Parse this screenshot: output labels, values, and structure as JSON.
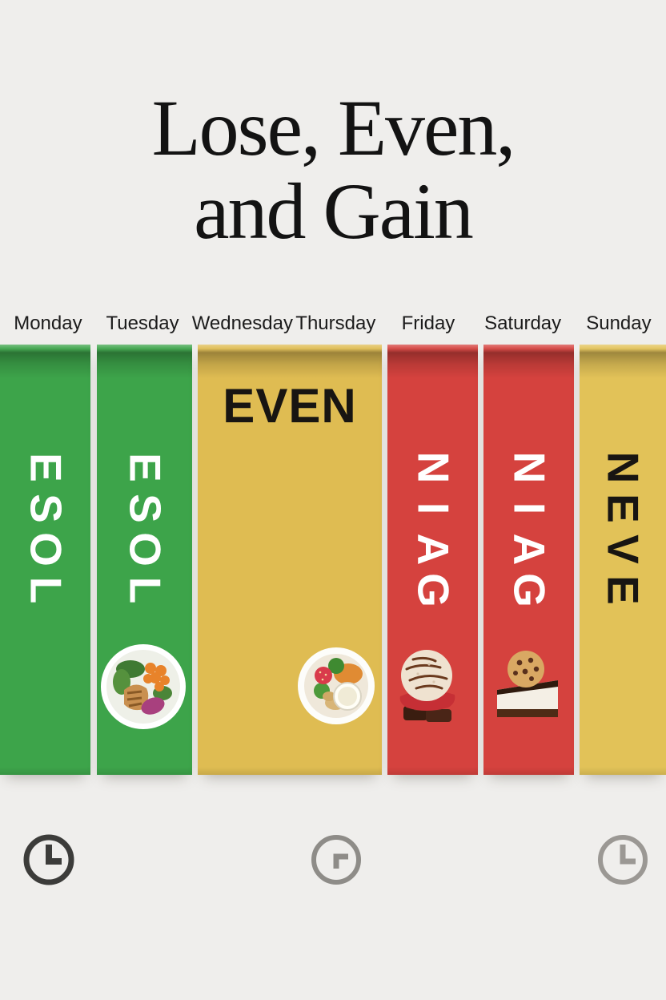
{
  "background_color": "#efeeec",
  "title": {
    "line1": "Lose, Even,",
    "line2": "and Gain",
    "color": "#131313"
  },
  "days": [
    "Monday",
    "Tuesday",
    "Wednesday",
    "Thursday",
    "Friday",
    "Saturday",
    "Sunday"
  ],
  "bands": [
    {
      "days": "Monday",
      "label": "LOSE",
      "color": "#3da44a",
      "text_color": "#ffffff"
    },
    {
      "days": "Tuesday",
      "label": "LOSE",
      "color": "#3da44a",
      "text_color": "#ffffff",
      "image": "healthy-meal-bowl"
    },
    {
      "days": "Wednesday-Thursday",
      "label": "EVEN",
      "color": "#dfbc52",
      "text_color": "#181512",
      "image": "balanced-snack-bowl"
    },
    {
      "days": "Friday",
      "label": "GAIN",
      "color": "#d5423e",
      "text_color": "#ffffff",
      "image": "ice-cream-with-chocolate"
    },
    {
      "days": "Saturday",
      "label": "GAIN",
      "color": "#d5423e",
      "text_color": "#ffffff",
      "image": "cheesecake-with-cookie"
    },
    {
      "days": "Sunday",
      "label": "EVEN",
      "color": "#e2c258",
      "text_color": "#181512"
    }
  ],
  "footer": {
    "icons": [
      {
        "name": "clock-icon",
        "color": "#3c3c3a"
      },
      {
        "name": "clock-icon",
        "color": "#8e8c88"
      },
      {
        "name": "clock-icon",
        "color": "#9b9894"
      }
    ]
  }
}
